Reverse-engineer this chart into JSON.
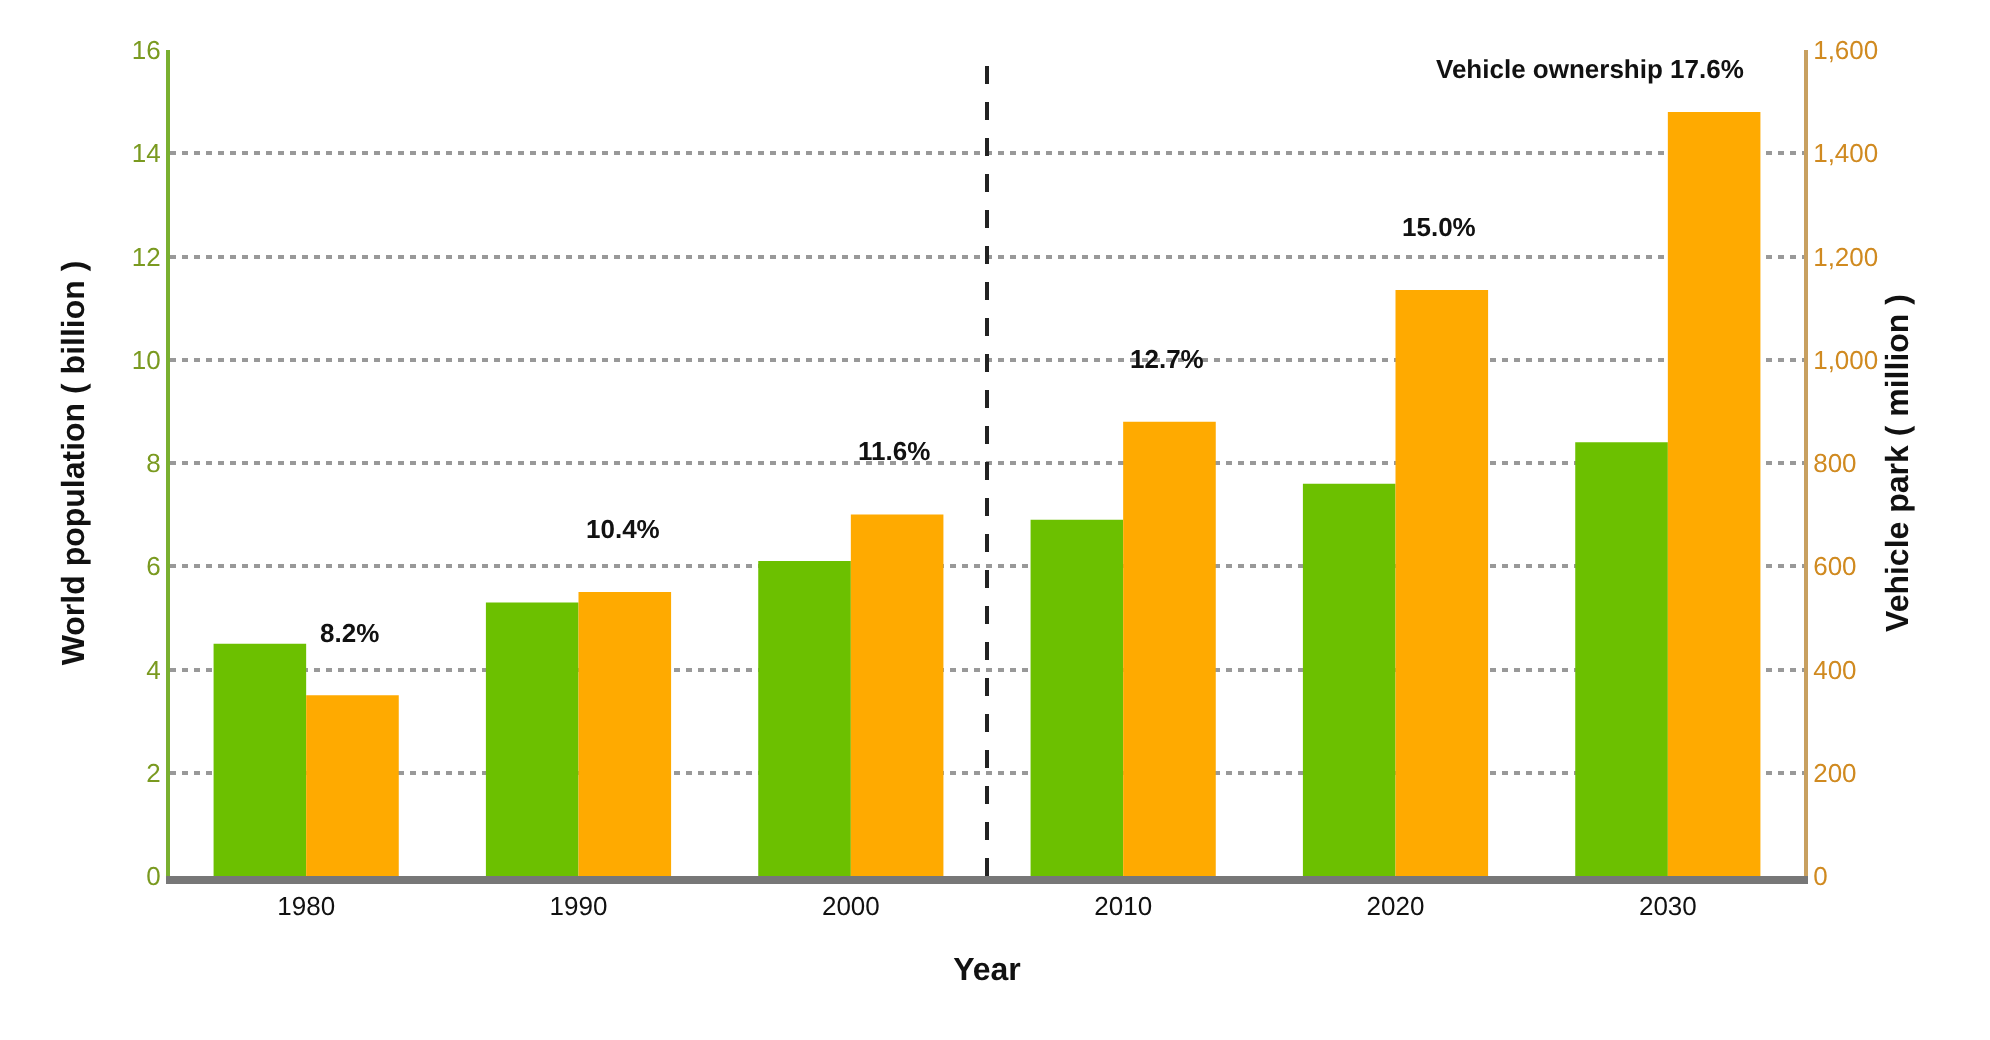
{
  "chart_data": {
    "type": "bar",
    "xlabel": "Year",
    "ylabel": "World population ( billion )",
    "y2label": "Vehicle park ( million )",
    "x": [
      1980,
      1990,
      2000,
      2010,
      2020,
      2030
    ],
    "xlim": [
      1975,
      2035
    ],
    "xticks": [
      1980,
      1990,
      2000,
      2010,
      2020,
      2030
    ],
    "ylim": [
      0,
      16
    ],
    "yticks": [
      0,
      2,
      4,
      6,
      8,
      10,
      12,
      14,
      16
    ],
    "y2lim": [
      0,
      1600
    ],
    "y2ticks": [
      0,
      200,
      400,
      600,
      800,
      {
        "value": 1000,
        "label": "1,000"
      },
      {
        "value": 1200,
        "label": "1,200"
      },
      {
        "value": 1400,
        "label": "1,400"
      },
      {
        "value": 1600,
        "label": "1,600"
      }
    ],
    "series": [
      {
        "color": "#6cc000",
        "values": [
          4.5,
          5.3,
          6.1,
          6.9,
          7.6,
          8.4
        ]
      },
      {
        "color": "#ffaa00",
        "axis": "y2",
        "values": [
          350,
          550,
          700,
          880,
          1135,
          1480
        ]
      }
    ],
    "ref_lines": [
      {
        "axis": "x",
        "value": 2005,
        "color": "#222222",
        "line_style": "dashed"
      }
    ],
    "annotations": [
      "8.2%",
      "10.4%",
      "11.6%",
      "12.7%",
      "15.0%",
      "Vehicle ownership 17.6%"
    ],
    "grid": "y"
  }
}
